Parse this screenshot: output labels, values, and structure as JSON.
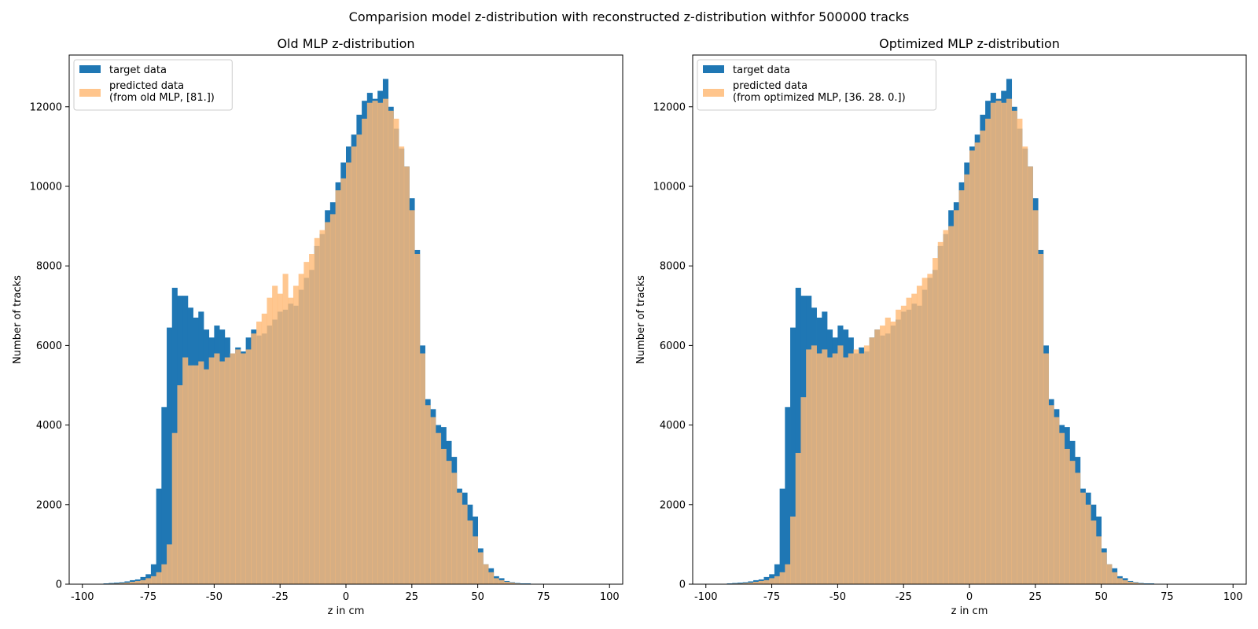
{
  "suptitle": "Comparision model z-distribution with reconstructed z-distribution withfor 500000 tracks",
  "colors": {
    "target": "#1f77b4",
    "predicted": "#ffbb78",
    "overlap": "#8c7b62"
  },
  "chart_data": [
    {
      "type": "bar",
      "title": "Old MLP z-distribution",
      "xlabel": "z in cm",
      "ylabel": "Number of tracks",
      "xlim": [
        -105,
        105
      ],
      "ylim": [
        0,
        13300
      ],
      "xticks": [
        -100,
        -75,
        -50,
        -25,
        0,
        25,
        50,
        75,
        100
      ],
      "yticks": [
        0,
        2000,
        4000,
        6000,
        8000,
        10000,
        12000
      ],
      "legend": "top-left",
      "bin_start": -100,
      "bin_width": 2,
      "series": [
        {
          "name": "target data",
          "values": [
            0,
            0,
            0,
            0,
            20,
            30,
            40,
            50,
            70,
            100,
            120,
            180,
            250,
            500,
            2400,
            4450,
            6450,
            7450,
            7250,
            7250,
            6950,
            6700,
            6850,
            6400,
            6200,
            6500,
            6400,
            6200,
            5800,
            5950,
            5850,
            6200,
            6400,
            6250,
            6300,
            6500,
            6650,
            6850,
            6900,
            7050,
            7000,
            7400,
            7700,
            7900,
            8500,
            8800,
            9400,
            9600,
            10100,
            10600,
            11000,
            11300,
            11800,
            12150,
            12350,
            12200,
            12400,
            12700,
            12000,
            11450,
            10950,
            10500,
            9700,
            8400,
            6000,
            4650,
            4400,
            4000,
            3950,
            3600,
            3200,
            2400,
            2300,
            2000,
            1700,
            900,
            500,
            400,
            200,
            150,
            80,
            50,
            30,
            20,
            20,
            10,
            10,
            5,
            5,
            5,
            0,
            0,
            0,
            0,
            0,
            0,
            0,
            0,
            0,
            0
          ]
        },
        {
          "name": "predicted data\n(from old MLP, [81.])",
          "values": [
            0,
            0,
            0,
            0,
            10,
            15,
            20,
            30,
            40,
            60,
            80,
            100,
            150,
            200,
            300,
            500,
            1000,
            3800,
            5000,
            5700,
            5500,
            5500,
            5600,
            5400,
            5700,
            5800,
            5600,
            5700,
            5800,
            5900,
            5800,
            5900,
            6300,
            6600,
            6800,
            7200,
            7500,
            7300,
            7800,
            7200,
            7500,
            7800,
            8100,
            8300,
            8700,
            8900,
            9100,
            9300,
            9900,
            10200,
            10600,
            11000,
            11300,
            11700,
            12100,
            12150,
            12100,
            12200,
            11900,
            11700,
            11000,
            10500,
            9400,
            8300,
            5800,
            4500,
            4200,
            3800,
            3400,
            3100,
            2800,
            2300,
            2000,
            1600,
            1200,
            800,
            500,
            300,
            150,
            100,
            60,
            40,
            20,
            10,
            5,
            5,
            5,
            0,
            0,
            0,
            0,
            0,
            0,
            0,
            0,
            0,
            0,
            0,
            0,
            0
          ]
        }
      ]
    },
    {
      "type": "bar",
      "title": "Optimized MLP z-distribution",
      "xlabel": "z in cm",
      "ylabel": "Number of tracks",
      "xlim": [
        -105,
        105
      ],
      "ylim": [
        0,
        13300
      ],
      "xticks": [
        -100,
        -75,
        -50,
        -25,
        0,
        25,
        50,
        75,
        100
      ],
      "yticks": [
        0,
        2000,
        4000,
        6000,
        8000,
        10000,
        12000
      ],
      "legend": "top-left",
      "bin_start": -100,
      "bin_width": 2,
      "series": [
        {
          "name": "target data",
          "values": [
            0,
            0,
            0,
            0,
            20,
            30,
            40,
            50,
            70,
            100,
            120,
            180,
            250,
            500,
            2400,
            4450,
            6450,
            7450,
            7250,
            7250,
            6950,
            6700,
            6850,
            6400,
            6200,
            6500,
            6400,
            6200,
            5800,
            5950,
            5850,
            6200,
            6400,
            6250,
            6300,
            6500,
            6650,
            6850,
            6900,
            7050,
            7000,
            7400,
            7700,
            7900,
            8500,
            8800,
            9400,
            9600,
            10100,
            10600,
            11000,
            11300,
            11800,
            12150,
            12350,
            12200,
            12400,
            12700,
            12000,
            11450,
            10950,
            10500,
            9700,
            8400,
            6000,
            4650,
            4400,
            4000,
            3950,
            3600,
            3200,
            2400,
            2300,
            2000,
            1700,
            900,
            500,
            400,
            200,
            150,
            80,
            50,
            30,
            20,
            20,
            10,
            10,
            5,
            5,
            5,
            0,
            0,
            0,
            0,
            0,
            0,
            0,
            0,
            0,
            0
          ]
        },
        {
          "name": "predicted data\n(from optimized MLP, [36. 28.  0.])",
          "values": [
            0,
            0,
            0,
            0,
            10,
            15,
            20,
            30,
            40,
            60,
            80,
            100,
            150,
            200,
            300,
            500,
            1700,
            3300,
            4700,
            5900,
            6000,
            5800,
            5900,
            5700,
            5800,
            6000,
            5700,
            5800,
            5900,
            5800,
            6000,
            6200,
            6400,
            6500,
            6700,
            6600,
            6900,
            7000,
            7200,
            7300,
            7500,
            7700,
            7800,
            8200,
            8600,
            8900,
            9000,
            9400,
            9900,
            10300,
            10900,
            11100,
            11400,
            11700,
            12100,
            12150,
            12100,
            12200,
            11900,
            11700,
            11000,
            10500,
            9400,
            8300,
            5800,
            4500,
            4200,
            3800,
            3400,
            3100,
            2800,
            2300,
            2000,
            1600,
            1200,
            800,
            500,
            300,
            150,
            100,
            60,
            40,
            20,
            10,
            5,
            5,
            5,
            0,
            0,
            0,
            0,
            0,
            0,
            0,
            0,
            0,
            0,
            0,
            0,
            0
          ]
        }
      ]
    }
  ]
}
